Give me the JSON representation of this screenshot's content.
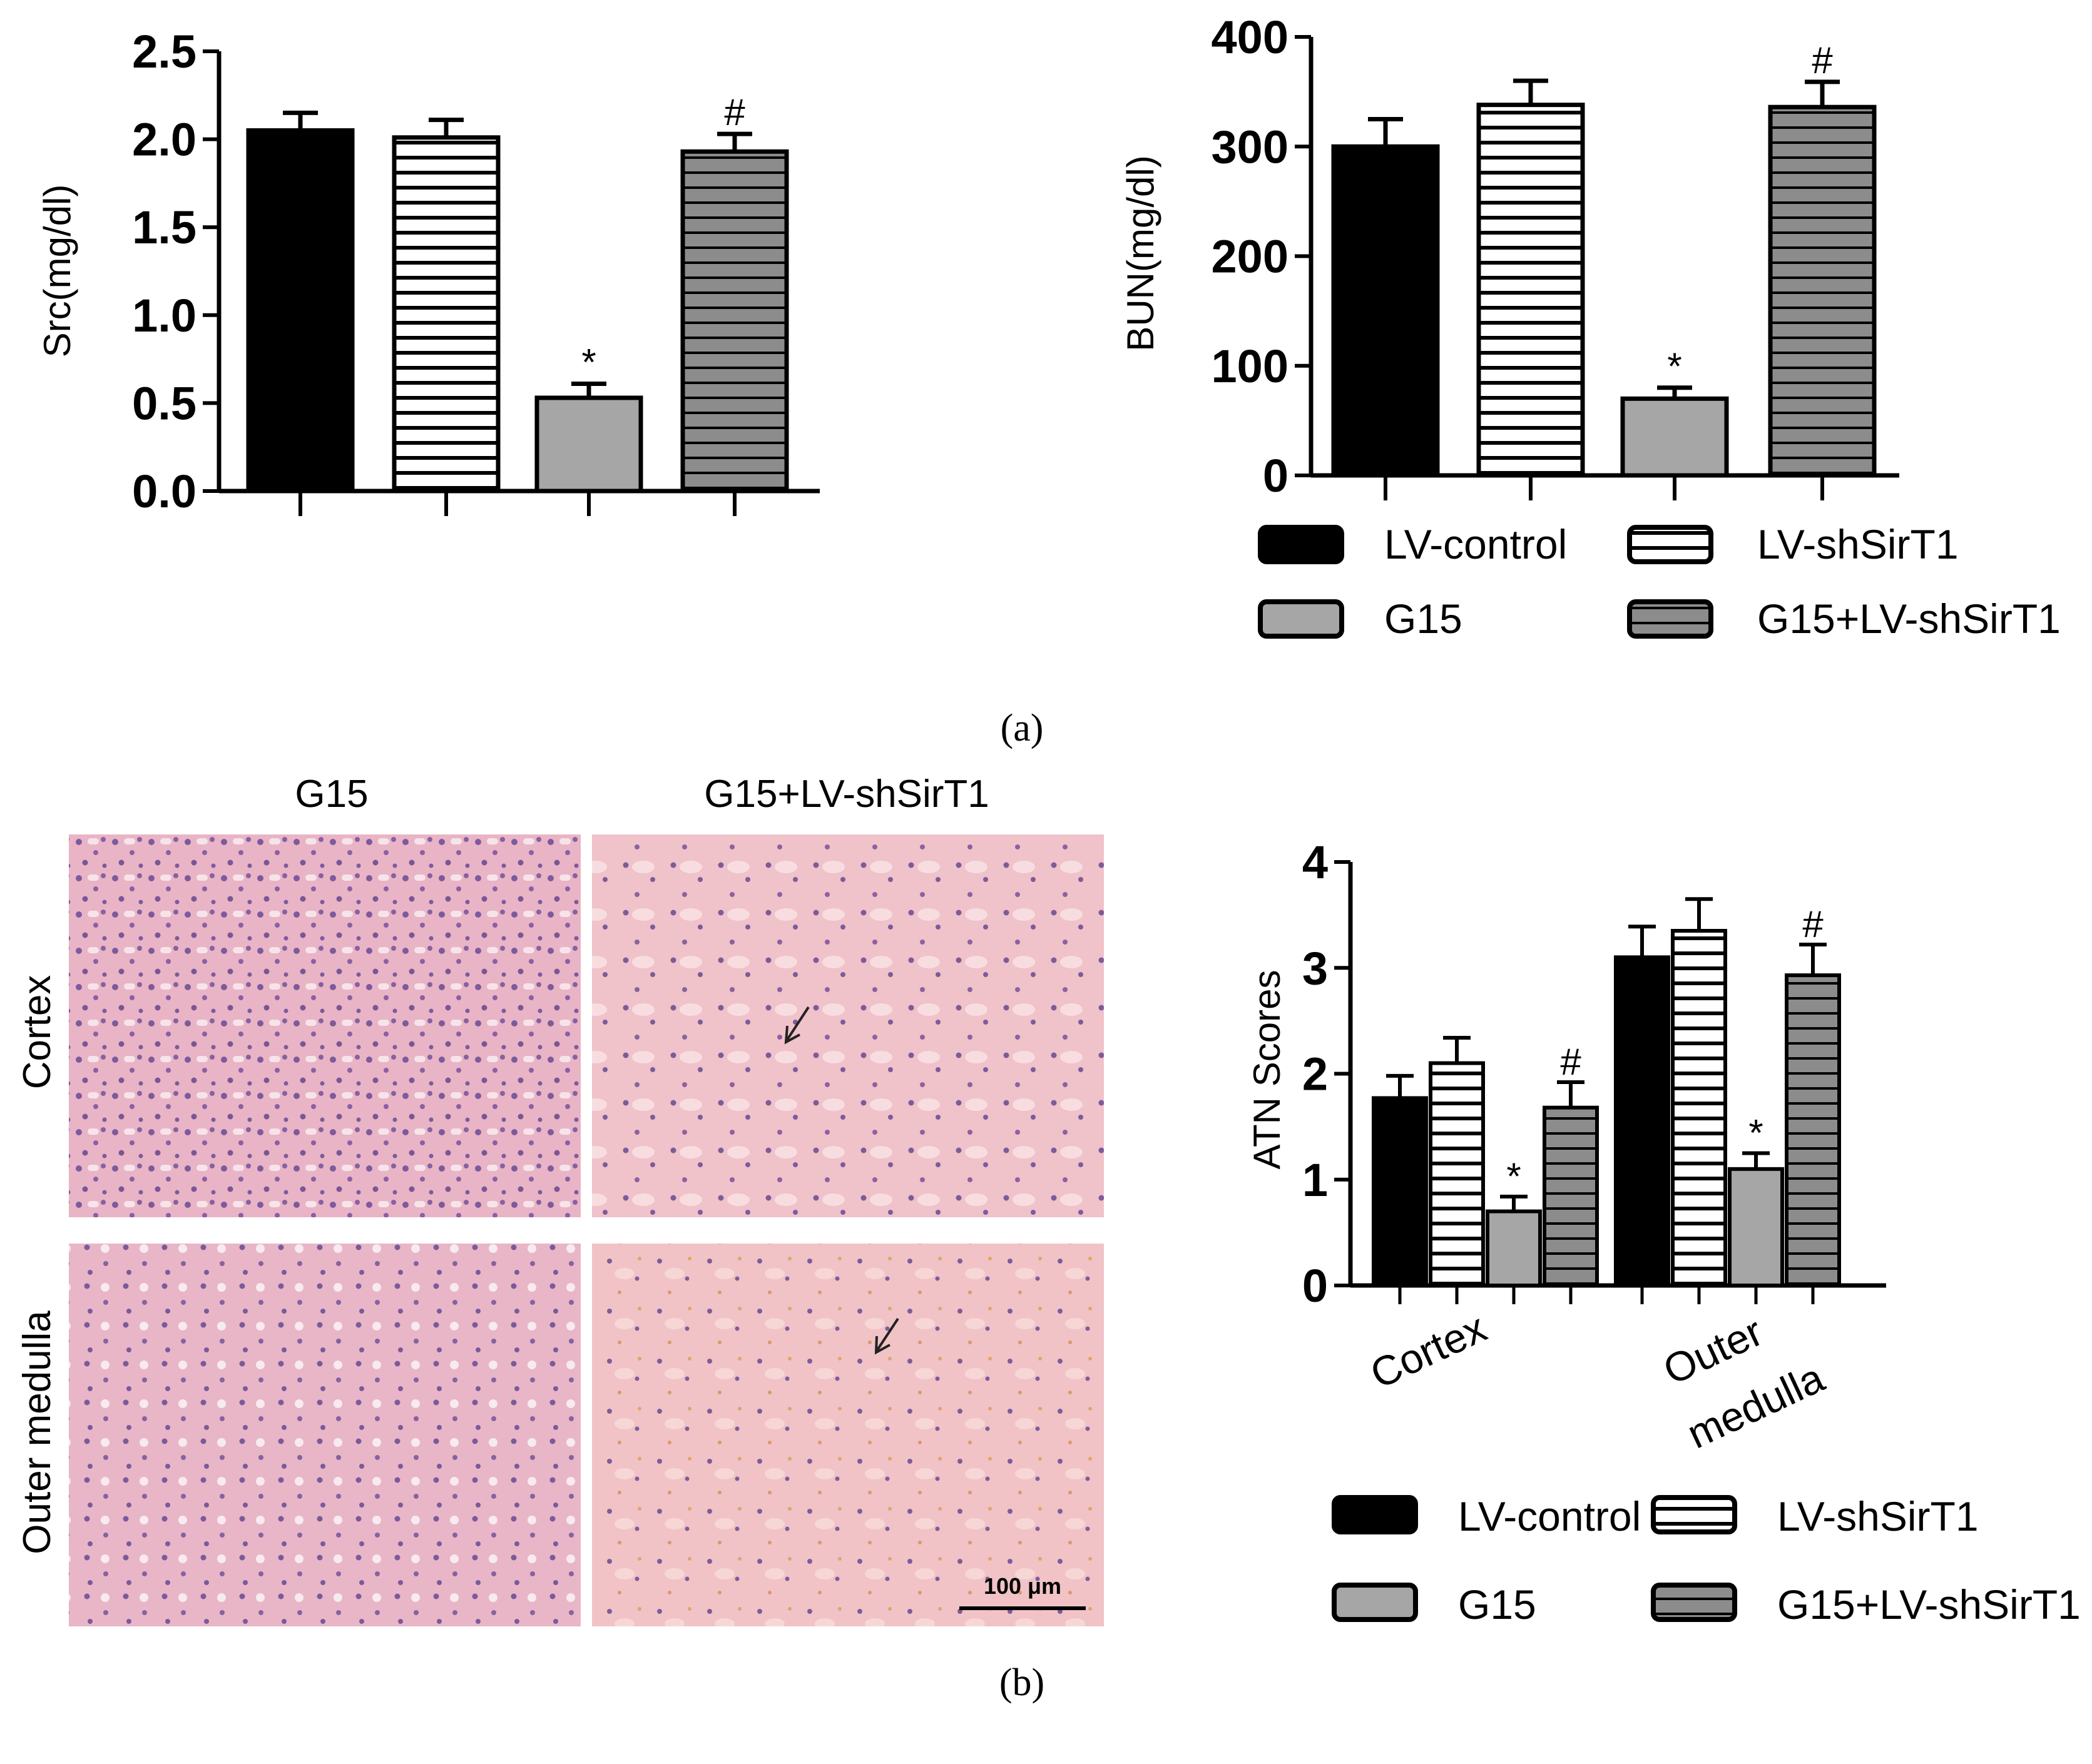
{
  "panel_labels": {
    "a": "(a)",
    "b": "(b)"
  },
  "groups": [
    {
      "name": "LV-control",
      "fill": "solid"
    },
    {
      "name": "LV-shSirT1",
      "fill": "hstripe"
    },
    {
      "name": "G15",
      "fill": "gray"
    },
    {
      "name": "G15+LV-shSirT1",
      "fill": "grayhstripe"
    }
  ],
  "colors": {
    "solid": "#000000",
    "gray": "#a6a6a6",
    "stripe_gray": "#8c8c8c",
    "stripe_white": "#ffffff"
  },
  "chart_data": [
    {
      "id": "src",
      "type": "bar",
      "title": "",
      "ylabel": "Src(mg/dl)",
      "ylim": [
        0,
        2.5
      ],
      "yticks": [
        "0.0",
        "0.5",
        "1.0",
        "1.5",
        "2.0",
        "2.5"
      ],
      "categories": [
        "LV-control",
        "LV-shSirT1",
        "G15",
        "G15+LV-shSirT1"
      ],
      "values": [
        2.05,
        2.01,
        0.53,
        1.93
      ],
      "errors": [
        0.1,
        0.1,
        0.08,
        0.1
      ],
      "marks": [
        "",
        "",
        "*",
        "#"
      ]
    },
    {
      "id": "bun",
      "type": "bar",
      "title": "",
      "ylabel": "BUN(mg/dl)",
      "ylim": [
        0,
        400
      ],
      "yticks": [
        "0",
        "100",
        "200",
        "300",
        "400"
      ],
      "categories": [
        "LV-control",
        "LV-shSirT1",
        "G15",
        "G15+LV-shSirT1"
      ],
      "values": [
        300,
        338,
        70,
        336
      ],
      "errors": [
        25,
        22,
        10,
        23
      ],
      "marks": [
        "",
        "",
        "*",
        "#"
      ]
    },
    {
      "id": "atn",
      "type": "bar",
      "title": "",
      "ylabel": "ATN Scores",
      "ylim": [
        0,
        4
      ],
      "yticks": [
        "0",
        "1",
        "2",
        "3",
        "4"
      ],
      "categories": [
        "Cortex",
        "Outer medulla"
      ],
      "category_label_lines": [
        [
          "Cortex"
        ],
        [
          "Outer",
          "medulla"
        ]
      ],
      "series": [
        {
          "name": "LV-control",
          "values": [
            1.77,
            3.1
          ],
          "errors": [
            0.21,
            0.29
          ],
          "marks": [
            "",
            ""
          ]
        },
        {
          "name": "LV-shSirT1",
          "values": [
            2.1,
            3.35
          ],
          "errors": [
            0.24,
            0.3
          ],
          "marks": [
            "",
            ""
          ]
        },
        {
          "name": "G15",
          "values": [
            0.7,
            1.1
          ],
          "errors": [
            0.14,
            0.15
          ],
          "marks": [
            "*",
            "*"
          ]
        },
        {
          "name": "G15+LV-shSirT1",
          "values": [
            1.68,
            2.93
          ],
          "errors": [
            0.24,
            0.29
          ],
          "marks": [
            "#",
            "#"
          ]
        }
      ]
    }
  ],
  "histology": {
    "column_labels": [
      "G15",
      "G15+LV-shSirT1"
    ],
    "row_labels": [
      "Cortex",
      "Outer medulla"
    ],
    "scale_bar": "100 μm"
  }
}
